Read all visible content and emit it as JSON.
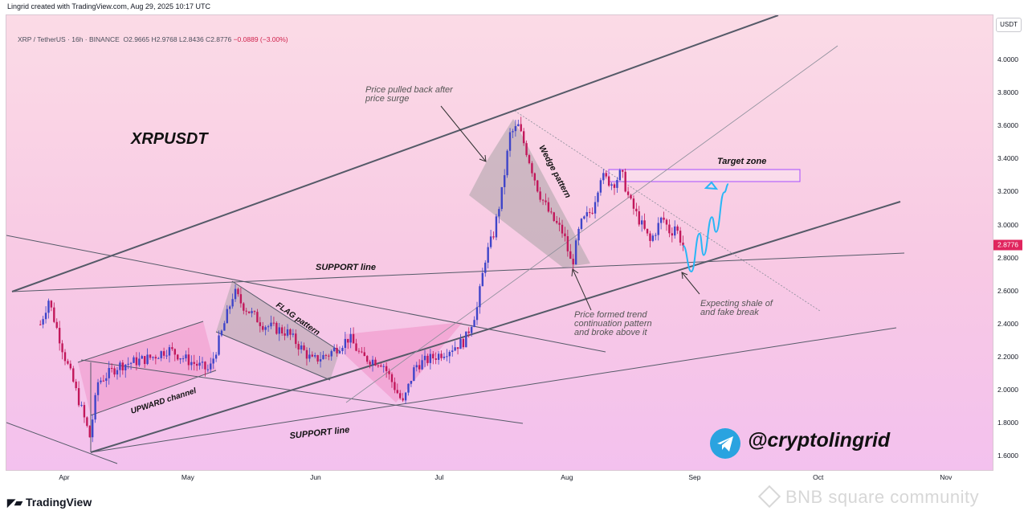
{
  "header": {
    "credit": "Lingrid created with TradingView.com, Aug 29, 2025 10:17 UTC",
    "symbol": "XRP / TetherUS · 16h · BINANCE",
    "ohlc": "O2.9665  H2.9768  L2.8436  C2.8776",
    "change": "−0.0889 (−3.00%)"
  },
  "price_axis": {
    "currency": "USDT",
    "ticks": [
      "4.0000",
      "3.8000",
      "3.6000",
      "3.4000",
      "3.2000",
      "3.0000",
      "2.8000",
      "2.6000",
      "2.4000",
      "2.2000",
      "2.0000",
      "1.8000",
      "1.6000"
    ],
    "last_price": "2.8776"
  },
  "time_axis": {
    "ticks": [
      "Apr",
      "May",
      "Jun",
      "Jul",
      "Aug",
      "Sep",
      "Oct",
      "Nov"
    ]
  },
  "colors": {
    "up": "#3f45c9",
    "down": "#c2185b",
    "last_price": "#e0255e",
    "target_zone": "#a64dff",
    "projection": "#29b6f6",
    "shaded": "#b0a6ab",
    "pink_shade": "#f08bc3"
  },
  "annotations": {
    "chart_title": "XRPUSDT",
    "pullback_note_1": "Price pulled back after",
    "pullback_note_2": "price surge",
    "wedge_label": "Wedge pattern",
    "target_label": "Target zone",
    "support_upper": "SUPPORT line",
    "support_lower": "SUPPORT line",
    "flag_label": "FLAG pattern",
    "upward_channel": "UPWARD channel",
    "trend_note_1": "Price formed trend",
    "trend_note_2": "continuation pattern",
    "trend_note_3": "and broke above it",
    "expect_note_1": "Expecting shale of",
    "expect_note_2": "and fake break",
    "handle": "@cryptolingrid"
  },
  "branding": {
    "tradingview": "TradingView",
    "watermark": "BNB square community",
    "telegram_icon": "telegram-icon"
  },
  "chart_data": {
    "type": "candlestick",
    "title": "XRPUSDT",
    "interval": "16h",
    "ylim": [
      1.5,
      4.2
    ],
    "x_ticks": [
      "Apr",
      "May",
      "Jun",
      "Jul",
      "Aug",
      "Sep",
      "Oct",
      "Nov"
    ],
    "price_path": [
      [
        "Mar 26",
        2.4
      ],
      [
        "Mar 28",
        2.55
      ],
      [
        "Apr 1",
        2.2
      ],
      [
        "Apr 3",
        2.05
      ],
      [
        "Apr 7",
        1.72
      ],
      [
        "Apr 9",
        2.05
      ],
      [
        "Apr 14",
        2.15
      ],
      [
        "Apr 22",
        2.2
      ],
      [
        "Apr 26",
        2.25
      ],
      [
        "May 1",
        2.18
      ],
      [
        "May 6",
        2.12
      ],
      [
        "May 9",
        2.35
      ],
      [
        "May 12",
        2.6
      ],
      [
        "May 14",
        2.52
      ],
      [
        "May 19",
        2.4
      ],
      [
        "May 25",
        2.35
      ],
      [
        "May 31",
        2.18
      ],
      [
        "Jun 4",
        2.22
      ],
      [
        "Jun 9",
        2.32
      ],
      [
        "Jun 12",
        2.2
      ],
      [
        "Jun 17",
        2.17
      ],
      [
        "Jun 22",
        1.92
      ],
      [
        "Jun 25",
        2.15
      ],
      [
        "Jul 1",
        2.22
      ],
      [
        "Jul 7",
        2.3
      ],
      [
        "Jul 10",
        2.5
      ],
      [
        "Jul 12",
        2.8
      ],
      [
        "Jul 14",
        2.95
      ],
      [
        "Jul 16",
        3.2
      ],
      [
        "Jul 18",
        3.55
      ],
      [
        "Jul 20",
        3.6
      ],
      [
        "Jul 22",
        3.45
      ],
      [
        "Jul 25",
        3.2
      ],
      [
        "Jul 28",
        3.05
      ],
      [
        "Jul 31",
        2.95
      ],
      [
        "Aug 2",
        2.75
      ],
      [
        "Aug 4",
        3.0
      ],
      [
        "Aug 7",
        3.1
      ],
      [
        "Aug 9",
        3.3
      ],
      [
        "Aug 12",
        3.25
      ],
      [
        "Aug 14",
        3.32
      ],
      [
        "Aug 16",
        3.15
      ],
      [
        "Aug 18",
        3.05
      ],
      [
        "Aug 21",
        2.9
      ],
      [
        "Aug 24",
        3.05
      ],
      [
        "Aug 26",
        2.95
      ],
      [
        "Aug 27",
        3.0
      ],
      [
        "Aug 29",
        2.8776
      ]
    ],
    "projection": [
      [
        "Aug 29",
        2.8776
      ],
      [
        "Aug 31",
        2.72
      ],
      [
        "Sep 2",
        2.95
      ],
      [
        "Sep 3",
        2.82
      ],
      [
        "Sep 5",
        3.05
      ],
      [
        "Sep 6",
        2.96
      ],
      [
        "Sep 8",
        3.2
      ],
      [
        "Sep 9",
        3.25
      ]
    ],
    "target_zone": {
      "from": "Aug 11",
      "to": "Oct 1",
      "low": 3.26,
      "high": 3.33
    },
    "last_price": 2.8776,
    "legend": "none",
    "grid": false
  }
}
